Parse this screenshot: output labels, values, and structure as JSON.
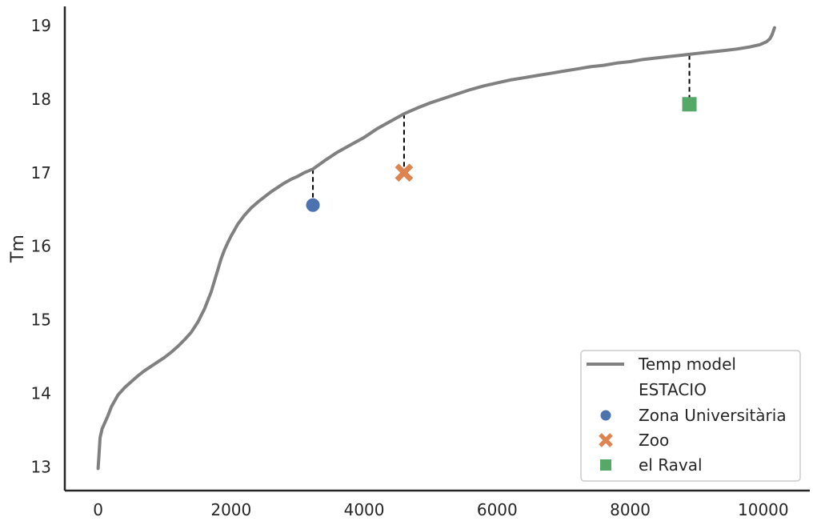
{
  "chart_data": {
    "type": "line",
    "ylabel": "Tm",
    "xlabel": "",
    "xlim": [
      -500,
      10700
    ],
    "ylim": [
      12.68,
      19.26
    ],
    "xticks": [
      0,
      2000,
      4000,
      6000,
      8000,
      10000
    ],
    "yticks": [
      13,
      14,
      15,
      16,
      17,
      18,
      19
    ],
    "grid": false,
    "legend_position": "bottom-right",
    "series": [
      {
        "name": "Temp model",
        "type": "line",
        "color": "#808080",
        "x": [
          0,
          30,
          60,
          100,
          150,
          200,
          300,
          400,
          500,
          600,
          700,
          800,
          900,
          1000,
          1100,
          1200,
          1300,
          1400,
          1500,
          1600,
          1700,
          1800,
          1850,
          1900,
          1950,
          2000,
          2050,
          2100,
          2150,
          2200,
          2300,
          2400,
          2500,
          2600,
          2700,
          2800,
          2900,
          3000,
          3100,
          3230,
          3400,
          3600,
          3800,
          4000,
          4200,
          4400,
          4600,
          4800,
          5000,
          5200,
          5400,
          5600,
          5800,
          6000,
          6200,
          6400,
          6600,
          6800,
          7000,
          7200,
          7400,
          7600,
          7800,
          8000,
          8200,
          8400,
          8600,
          8800,
          8900,
          9000,
          9200,
          9400,
          9600,
          9800,
          9950,
          10050,
          10100,
          10130,
          10150,
          10170
        ],
        "y": [
          12.98,
          13.4,
          13.52,
          13.6,
          13.7,
          13.82,
          13.98,
          14.08,
          14.16,
          14.24,
          14.31,
          14.37,
          14.43,
          14.49,
          14.56,
          14.64,
          14.73,
          14.83,
          14.97,
          15.15,
          15.38,
          15.68,
          15.83,
          15.95,
          16.05,
          16.14,
          16.22,
          16.3,
          16.36,
          16.42,
          16.52,
          16.6,
          16.67,
          16.74,
          16.8,
          16.86,
          16.91,
          16.95,
          17.0,
          17.05,
          17.16,
          17.28,
          17.38,
          17.48,
          17.6,
          17.7,
          17.8,
          17.88,
          17.95,
          18.01,
          18.07,
          18.13,
          18.18,
          18.22,
          18.26,
          18.29,
          18.32,
          18.35,
          18.38,
          18.41,
          18.44,
          18.46,
          18.49,
          18.51,
          18.54,
          18.56,
          18.58,
          18.6,
          18.61,
          18.62,
          18.64,
          18.66,
          18.68,
          18.71,
          18.74,
          18.78,
          18.82,
          18.87,
          18.92,
          18.97
        ]
      },
      {
        "name": "Zona Universitària",
        "type": "scatter",
        "marker": "circle",
        "color": "#4c72b0",
        "x": [
          3230
        ],
        "y": [
          16.56
        ],
        "model_y": [
          17.05
        ]
      },
      {
        "name": "Zoo",
        "type": "scatter",
        "marker": "x",
        "color": "#dd8452",
        "x": [
          4600
        ],
        "y": [
          17.0
        ],
        "model_y": [
          17.8
        ]
      },
      {
        "name": "el Raval",
        "type": "scatter",
        "marker": "square",
        "color": "#55a868",
        "x": [
          8890
        ],
        "y": [
          17.93
        ],
        "model_y": [
          18.6
        ]
      }
    ],
    "legend": {
      "line_entry": "Temp model",
      "group_title": "ESTACIO",
      "entries": [
        " Zona Universitària",
        " Zoo",
        " el Raval"
      ]
    }
  }
}
